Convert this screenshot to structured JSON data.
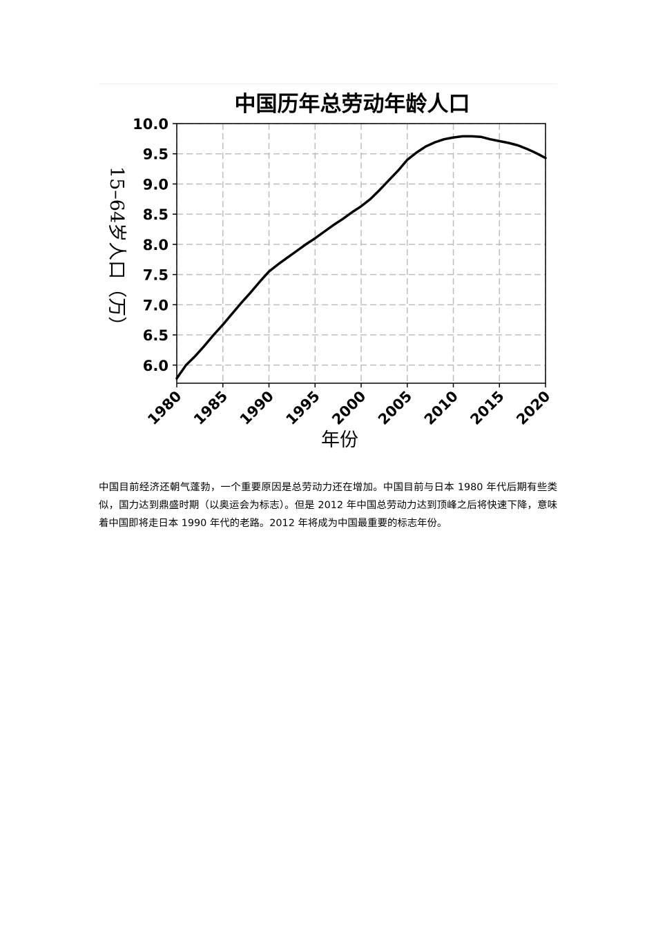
{
  "chart_data": {
    "type": "line",
    "title": "中国历年总劳动年龄人口",
    "xlabel": "年份",
    "ylabel": "15–64岁人口（万）",
    "xlim": [
      1980,
      2020
    ],
    "ylim": [
      5.7,
      10.0
    ],
    "x_ticks": [
      1980,
      1985,
      1990,
      1995,
      2000,
      2005,
      2010,
      2015,
      2020
    ],
    "x_tick_labels": [
      "1980",
      "1985",
      "1990",
      "1995",
      "2000",
      "2005",
      "2010",
      "2015",
      "2020"
    ],
    "y_ticks": [
      6.0,
      6.5,
      7.0,
      7.5,
      8.0,
      8.5,
      9.0,
      9.5,
      10.0
    ],
    "y_tick_labels": [
      "6.0",
      "6.5",
      "7.0",
      "7.5",
      "8.0",
      "8.5",
      "9.0",
      "9.5",
      "10.0"
    ],
    "grid": true,
    "series": [
      {
        "x": [
          1980,
          1981,
          1982,
          1983,
          1984,
          1985,
          1986,
          1987,
          1988,
          1989,
          1990,
          1991,
          1992,
          1993,
          1994,
          1995,
          1996,
          1997,
          1998,
          1999,
          2000,
          2001,
          2002,
          2003,
          2004,
          2005,
          2006,
          2007,
          2008,
          2009,
          2010,
          2011,
          2012,
          2013,
          2014,
          2015,
          2016,
          2017,
          2018,
          2019,
          2020
        ],
        "values": [
          5.78,
          6.0,
          6.15,
          6.32,
          6.5,
          6.67,
          6.85,
          7.03,
          7.2,
          7.38,
          7.55,
          7.67,
          7.78,
          7.89,
          8.0,
          8.1,
          8.21,
          8.32,
          8.42,
          8.53,
          8.63,
          8.75,
          8.9,
          9.06,
          9.22,
          9.4,
          9.52,
          9.62,
          9.69,
          9.74,
          9.77,
          9.79,
          9.79,
          9.78,
          9.74,
          9.71,
          9.68,
          9.64,
          9.58,
          9.51,
          9.43
        ]
      }
    ]
  },
  "body": {
    "paragraph": "中国目前经济还朝气蓬勃，一个重要原因是总劳动力还在增加。中国目前与日本 1980 年代后期有些类似，国力达到鼎盛时期（以奥运会为标志）。但是 2012 年中国总劳动力达到顶峰之后将快速下降，意味着中国即将走日本 1990 年代的老路。2012 年将成为中国最重要的标志年份。"
  }
}
